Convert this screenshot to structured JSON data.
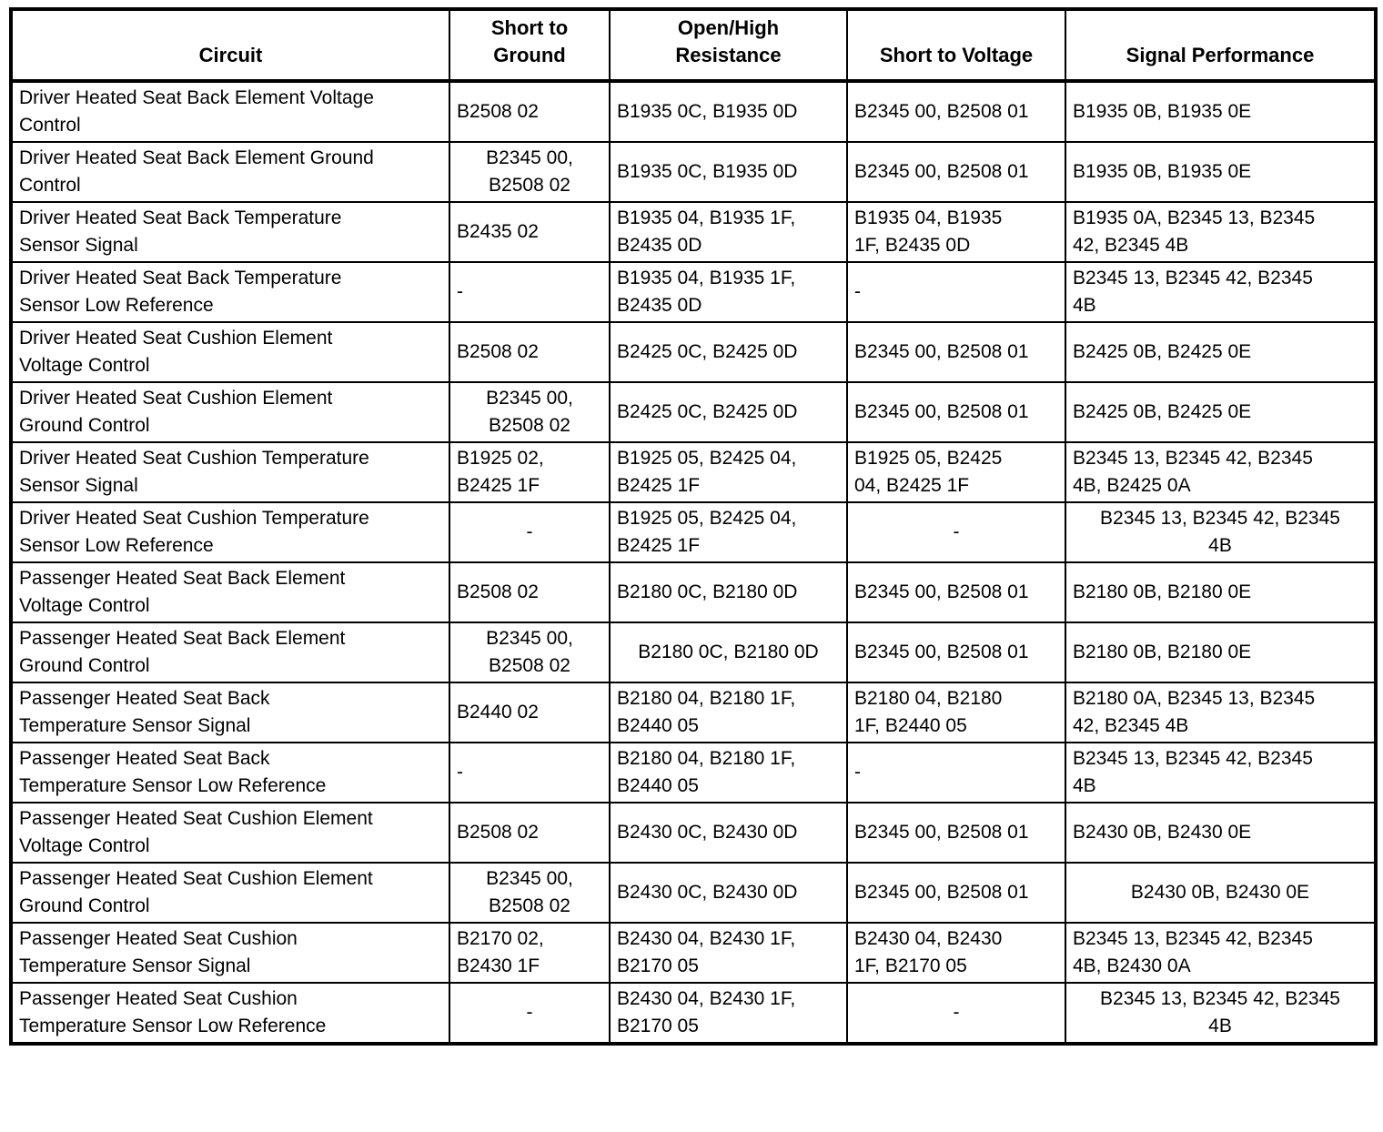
{
  "table": {
    "columns": [
      {
        "id": "circuit",
        "label": "Circuit"
      },
      {
        "id": "short-to-ground",
        "label": "Short to\nGround"
      },
      {
        "id": "open-high-resistance",
        "label": "Open/High\nResistance"
      },
      {
        "id": "short-to-voltage",
        "label": "Short to Voltage"
      },
      {
        "id": "signal-performance",
        "label": "Signal Performance"
      }
    ],
    "rows": [
      {
        "cells": [
          {
            "text": "Driver Heated Seat Back Element Voltage\nControl"
          },
          {
            "text": "B2508 02"
          },
          {
            "text": "B1935 0C, B1935 0D"
          },
          {
            "text": "B2345 00, B2508 01"
          },
          {
            "text": "B1935 0B, B1935 0E"
          }
        ]
      },
      {
        "cells": [
          {
            "text": "Driver Heated Seat Back Element Ground\nControl"
          },
          {
            "text": "B2345 00,\nB2508 02",
            "align": "center"
          },
          {
            "text": "B1935 0C, B1935 0D"
          },
          {
            "text": "B2345 00, B2508 01"
          },
          {
            "text": "B1935 0B, B1935 0E"
          }
        ]
      },
      {
        "cells": [
          {
            "text": "Driver Heated Seat Back Temperature\nSensor Signal"
          },
          {
            "text": "B2435 02"
          },
          {
            "text": "B1935 04, B1935 1F,\nB2435 0D"
          },
          {
            "text": "B1935 04, B1935\n1F, B2435 0D"
          },
          {
            "text": "B1935 0A, B2345 13, B2345\n42, B2345 4B"
          }
        ]
      },
      {
        "cells": [
          {
            "text": "Driver Heated Seat Back Temperature\nSensor Low Reference"
          },
          {
            "text": "-"
          },
          {
            "text": "B1935 04, B1935 1F,\nB2435 0D"
          },
          {
            "text": "-"
          },
          {
            "text": "B2345 13, B2345 42, B2345\n4B"
          }
        ]
      },
      {
        "cells": [
          {
            "text": "Driver Heated Seat Cushion Element\nVoltage Control"
          },
          {
            "text": "B2508 02"
          },
          {
            "text": "B2425 0C, B2425 0D"
          },
          {
            "text": "B2345 00, B2508 01"
          },
          {
            "text": "B2425 0B, B2425 0E"
          }
        ]
      },
      {
        "cells": [
          {
            "text": "Driver Heated Seat Cushion Element\nGround Control"
          },
          {
            "text": "B2345 00,\nB2508 02",
            "align": "center"
          },
          {
            "text": "B2425 0C, B2425 0D"
          },
          {
            "text": "B2345 00, B2508 01"
          },
          {
            "text": "B2425 0B, B2425 0E"
          }
        ]
      },
      {
        "cells": [
          {
            "text": "Driver Heated Seat Cushion Temperature\nSensor Signal"
          },
          {
            "text": "B1925 02,\nB2425 1F"
          },
          {
            "text": "B1925 05, B2425 04,\nB2425 1F"
          },
          {
            "text": "B1925 05, B2425\n04, B2425 1F"
          },
          {
            "text": "B2345 13, B2345 42, B2345\n4B, B2425 0A"
          }
        ]
      },
      {
        "cells": [
          {
            "text": "Driver Heated Seat Cushion Temperature\nSensor Low Reference"
          },
          {
            "text": "-",
            "align": "center"
          },
          {
            "text": "B1925 05, B2425 04,\nB2425 1F"
          },
          {
            "text": "-",
            "align": "center"
          },
          {
            "text": "B2345 13, B2345 42, B2345\n4B",
            "align": "center"
          }
        ]
      },
      {
        "cells": [
          {
            "text": "Passenger Heated Seat Back Element\nVoltage Control"
          },
          {
            "text": "B2508 02"
          },
          {
            "text": "B2180 0C, B2180 0D"
          },
          {
            "text": "B2345 00, B2508 01"
          },
          {
            "text": "B2180 0B, B2180 0E"
          }
        ]
      },
      {
        "cells": [
          {
            "text": "Passenger Heated Seat Back Element\nGround Control"
          },
          {
            "text": "B2345 00,\nB2508 02",
            "align": "center"
          },
          {
            "text": "B2180 0C, B2180 0D",
            "align": "center"
          },
          {
            "text": "B2345 00, B2508 01"
          },
          {
            "text": "B2180 0B, B2180 0E"
          }
        ]
      },
      {
        "cells": [
          {
            "text": "Passenger Heated Seat Back\nTemperature Sensor Signal"
          },
          {
            "text": "B2440 02"
          },
          {
            "text": "B2180 04, B2180 1F,\nB2440 05"
          },
          {
            "text": "B2180 04, B2180\n1F, B2440 05"
          },
          {
            "text": "B2180 0A, B2345 13, B2345\n42, B2345 4B"
          }
        ]
      },
      {
        "cells": [
          {
            "text": "Passenger Heated Seat Back\nTemperature Sensor Low Reference"
          },
          {
            "text": "-"
          },
          {
            "text": "B2180 04, B2180 1F,\nB2440 05"
          },
          {
            "text": "-"
          },
          {
            "text": "B2345 13, B2345 42, B2345\n4B"
          }
        ]
      },
      {
        "cells": [
          {
            "text": "Passenger Heated Seat Cushion Element\nVoltage Control"
          },
          {
            "text": "B2508 02"
          },
          {
            "text": "B2430 0C, B2430 0D"
          },
          {
            "text": "B2345 00, B2508 01"
          },
          {
            "text": "B2430 0B, B2430 0E"
          }
        ]
      },
      {
        "cells": [
          {
            "text": "Passenger Heated Seat Cushion Element\nGround Control"
          },
          {
            "text": "B2345 00,\nB2508 02",
            "align": "center"
          },
          {
            "text": "B2430 0C, B2430 0D"
          },
          {
            "text": "B2345 00, B2508 01"
          },
          {
            "text": "B2430 0B, B2430 0E",
            "align": "center"
          }
        ]
      },
      {
        "cells": [
          {
            "text": "Passenger Heated Seat Cushion\nTemperature Sensor Signal"
          },
          {
            "text": "B2170 02,\nB2430 1F"
          },
          {
            "text": "B2430 04, B2430 1F,\nB2170 05"
          },
          {
            "text": "B2430 04, B2430\n1F, B2170 05"
          },
          {
            "text": "B2345 13, B2345 42, B2345\n4B, B2430 0A"
          }
        ]
      },
      {
        "cells": [
          {
            "text": "Passenger Heated Seat Cushion\nTemperature Sensor Low Reference"
          },
          {
            "text": "-",
            "align": "center"
          },
          {
            "text": "B2430 04, B2430 1F,\nB2170 05"
          },
          {
            "text": "-",
            "align": "center"
          },
          {
            "text": "B2345 13, B2345 42, B2345\n4B",
            "align": "center"
          }
        ]
      }
    ]
  }
}
